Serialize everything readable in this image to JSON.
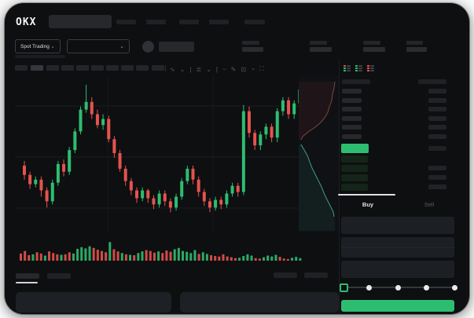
{
  "header": {
    "logo": "OKX"
  },
  "subheader": {
    "market_selector": "Spot Trading",
    "chevron": "⌄"
  },
  "toolbar": {
    "icons": [
      "∿",
      "⌄",
      "|",
      "≣",
      "⌄",
      "|",
      "~",
      "✎",
      "⊡",
      "◔",
      "⛶"
    ]
  },
  "order_book": {
    "ask_rows": 6,
    "bid_rows": 4,
    "view_modes": [
      {
        "name": "book-both",
        "rows": [
          "#e5534e",
          "#2ebd70",
          "#2ebd70"
        ]
      },
      {
        "name": "book-bids",
        "rows": [
          "#2ebd70",
          "#2ebd70",
          "#2ebd70"
        ]
      },
      {
        "name": "book-asks",
        "rows": [
          "#e5534e",
          "#e5534e",
          "#e5534e"
        ]
      }
    ]
  },
  "order_panel": {
    "buy_tab": "Buy",
    "sell_tab": "Sell",
    "slider_steps": 5
  },
  "colors": {
    "up": "#2ebd70",
    "down": "#e5534e",
    "buy_button": "#2ebd70",
    "depth_ask_line": "#7d4543",
    "depth_bid_line": "#3f9c88",
    "grid": "#1a1c20"
  },
  "chart_data": {
    "type": "candlestick",
    "title": "",
    "xlabel": "",
    "ylabel": "",
    "note": "price axis labels not rendered in UI (placeholder skeleton); values normalized 0-100",
    "ylim": [
      0,
      100
    ],
    "grid": true,
    "candles": [
      [
        44,
        38,
        47,
        35
      ],
      [
        38,
        32,
        40,
        29
      ],
      [
        32,
        35,
        37,
        30
      ],
      [
        35,
        28,
        37,
        24
      ],
      [
        28,
        21,
        30,
        17
      ],
      [
        21,
        33,
        35,
        19
      ],
      [
        33,
        45,
        47,
        31
      ],
      [
        45,
        40,
        48,
        37
      ],
      [
        40,
        54,
        56,
        38
      ],
      [
        54,
        66,
        68,
        52
      ],
      [
        66,
        80,
        82,
        64
      ],
      [
        80,
        85,
        96,
        78
      ],
      [
        85,
        77,
        88,
        74
      ],
      [
        77,
        70,
        80,
        68
      ],
      [
        70,
        74,
        77,
        67
      ],
      [
        74,
        61,
        76,
        59
      ],
      [
        61,
        52,
        63,
        49
      ],
      [
        52,
        42,
        54,
        40
      ],
      [
        42,
        34,
        44,
        31
      ],
      [
        34,
        28,
        36,
        25
      ],
      [
        28,
        23,
        30,
        20
      ],
      [
        23,
        28,
        30,
        21
      ],
      [
        28,
        23,
        29,
        20
      ],
      [
        23,
        19,
        25,
        16
      ],
      [
        19,
        26,
        28,
        17
      ],
      [
        26,
        21,
        28,
        18
      ],
      [
        21,
        17,
        23,
        14
      ],
      [
        17,
        24,
        26,
        15
      ],
      [
        24,
        34,
        36,
        22
      ],
      [
        34,
        42,
        44,
        32
      ],
      [
        42,
        35,
        44,
        32
      ],
      [
        35,
        27,
        37,
        24
      ],
      [
        27,
        21,
        29,
        18
      ],
      [
        21,
        17,
        23,
        14
      ],
      [
        17,
        22,
        24,
        15
      ],
      [
        22,
        19,
        24,
        16
      ],
      [
        19,
        26,
        28,
        17
      ],
      [
        26,
        31,
        33,
        24
      ],
      [
        31,
        27,
        33,
        24
      ],
      [
        27,
        79,
        83,
        25
      ],
      [
        79,
        65,
        82,
        62
      ],
      [
        65,
        57,
        67,
        54
      ],
      [
        57,
        64,
        66,
        54
      ],
      [
        64,
        69,
        71,
        61
      ],
      [
        69,
        62,
        71,
        59
      ],
      [
        62,
        79,
        81,
        59
      ],
      [
        79,
        86,
        88,
        76
      ],
      [
        86,
        77,
        88,
        74
      ],
      [
        77,
        84,
        86,
        74
      ],
      [
        84,
        93,
        97,
        81
      ]
    ],
    "volume": [
      [
        34,
        "r"
      ],
      [
        46,
        "r"
      ],
      [
        26,
        "r"
      ],
      [
        30,
        "g"
      ],
      [
        40,
        "r"
      ],
      [
        34,
        "r"
      ],
      [
        24,
        "g"
      ],
      [
        44,
        "r"
      ],
      [
        36,
        "r"
      ],
      [
        30,
        "r"
      ],
      [
        28,
        "g"
      ],
      [
        30,
        "r"
      ],
      [
        40,
        "r"
      ],
      [
        34,
        "g"
      ],
      [
        56,
        "g"
      ],
      [
        64,
        "g"
      ],
      [
        58,
        "g"
      ],
      [
        68,
        "g"
      ],
      [
        60,
        "r"
      ],
      [
        52,
        "r"
      ],
      [
        46,
        "r"
      ],
      [
        40,
        "r"
      ],
      [
        88,
        "g"
      ],
      [
        54,
        "r"
      ],
      [
        44,
        "r"
      ],
      [
        36,
        "g"
      ],
      [
        30,
        "r"
      ],
      [
        28,
        "g"
      ],
      [
        26,
        "r"
      ],
      [
        36,
        "g"
      ],
      [
        44,
        "g"
      ],
      [
        50,
        "r"
      ],
      [
        46,
        "r"
      ],
      [
        38,
        "r"
      ],
      [
        44,
        "g"
      ],
      [
        36,
        "r"
      ],
      [
        48,
        "r"
      ],
      [
        42,
        "r"
      ],
      [
        54,
        "g"
      ],
      [
        60,
        "g"
      ],
      [
        46,
        "g"
      ],
      [
        42,
        "g"
      ],
      [
        36,
        "g"
      ],
      [
        50,
        "g"
      ],
      [
        32,
        "r"
      ],
      [
        40,
        "g"
      ],
      [
        32,
        "g"
      ],
      [
        26,
        "r"
      ],
      [
        22,
        "r"
      ],
      [
        20,
        "r"
      ],
      [
        30,
        "r"
      ],
      [
        20,
        "r"
      ],
      [
        16,
        "r"
      ],
      [
        12,
        "r"
      ],
      [
        14,
        "g"
      ],
      [
        22,
        "g"
      ],
      [
        30,
        "g"
      ],
      [
        24,
        "g"
      ],
      [
        12,
        "r"
      ],
      [
        10,
        "r"
      ],
      [
        16,
        "g"
      ],
      [
        24,
        "g"
      ],
      [
        20,
        "g"
      ],
      [
        28,
        "g"
      ],
      [
        18,
        "r"
      ],
      [
        10,
        "r"
      ],
      [
        8,
        "r"
      ],
      [
        14,
        "g"
      ],
      [
        18,
        "g"
      ],
      [
        12,
        "g"
      ]
    ],
    "depth": {
      "asks": [
        [
          46,
          8
        ],
        [
          45,
          16
        ],
        [
          43,
          24
        ],
        [
          42,
          32
        ],
        [
          39,
          40
        ],
        [
          37,
          47
        ],
        [
          33,
          54
        ],
        [
          28,
          60
        ],
        [
          21,
          66
        ],
        [
          12,
          72
        ],
        [
          5,
          78
        ],
        [
          3,
          82
        ]
      ],
      "bids": [
        [
          3,
          88
        ],
        [
          7,
          95
        ],
        [
          11,
          102
        ],
        [
          14,
          110
        ],
        [
          17,
          118
        ],
        [
          21,
          126
        ],
        [
          25,
          134
        ],
        [
          29,
          142
        ],
        [
          33,
          152
        ],
        [
          37,
          160
        ],
        [
          41,
          168
        ],
        [
          44,
          174
        ],
        [
          45,
          180
        ]
      ]
    }
  }
}
